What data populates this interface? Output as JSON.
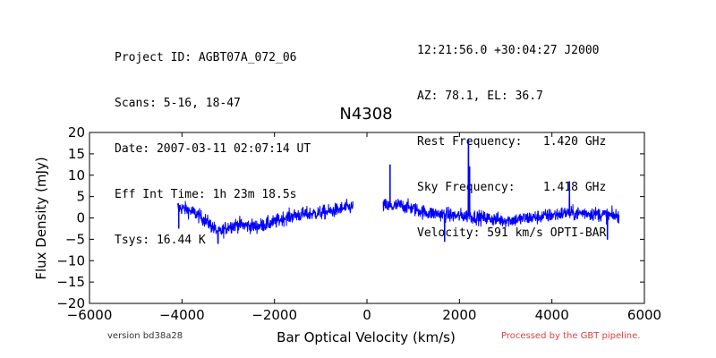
{
  "header_left": [
    "Project ID: AGBT07A_072_06",
    "Scans: 5-16, 18-47",
    "Date: 2007-03-11 02:07:14 UT",
    "Eff Int Time: 1h 23m 18.5s",
    "Tsys: 16.44 K"
  ],
  "header_right": [
    "12:21:56.0 +30:04:27 J2000",
    "AZ: 78.1, EL: 36.7",
    "Rest Frequency:   1.420 GHz",
    "Sky Frequency:    1.418 GHz",
    "Velocity: 591 km/s OPTI-BAR"
  ],
  "footer": {
    "version": "version bd38a28",
    "pipeline": "Processed by the GBT pipeline."
  },
  "colors": {
    "line": "#0000ff",
    "pipeline_text": "#e04040"
  },
  "chart_data": {
    "type": "line",
    "title": "N4308",
    "xlabel": "Bar Optical Velocity (km/s)",
    "ylabel": "Flux Density (mJy)",
    "xlim": [
      -6000,
      6000
    ],
    "ylim": [
      -20,
      20
    ],
    "xticks": [
      -6000,
      -4000,
      -2000,
      0,
      2000,
      4000,
      6000
    ],
    "yticks": [
      -20,
      -15,
      -10,
      -5,
      0,
      5,
      10,
      15,
      20
    ],
    "xtick_labels": [
      "−6000",
      "−4000",
      "−2000",
      "0",
      "2000",
      "4000",
      "6000"
    ],
    "ytick_labels": [
      "−20",
      "−15",
      "−10",
      "−5",
      "0",
      "5",
      "10",
      "15",
      "20"
    ],
    "grid": false,
    "series": [
      {
        "segments": [
          {
            "x": [
              -4100,
              -3900,
              -3700,
              -3500,
              -3300,
              -3200,
              -3000,
              -2800,
              -2600,
              -2400,
              -2200,
              -2000,
              -1800,
              -1600,
              -1400,
              -1200,
              -1000,
              -800,
              -600,
              -400,
              -300
            ],
            "y": [
              2.5,
              2.0,
              1.0,
              -0.5,
              -2.5,
              -3.5,
              -2.0,
              -1.5,
              -1.8,
              -2.0,
              -1.5,
              -1.0,
              0.0,
              0.5,
              0.8,
              1.0,
              1.2,
              1.5,
              2.0,
              2.5,
              2.5
            ]
          },
          {
            "x": [
              350,
              500,
              700,
              900,
              1100,
              1300,
              1500,
              1700,
              1900,
              2100,
              2300,
              2500,
              2700,
              2900,
              3100,
              3300,
              3500,
              3700,
              3900,
              4100,
              4300,
              4500,
              4700,
              4900,
              5100,
              5300,
              5450
            ],
            "y": [
              3.0,
              2.5,
              3.0,
              2.5,
              1.8,
              1.2,
              1.0,
              0.8,
              0.5,
              0.5,
              0.3,
              0.0,
              -0.2,
              -0.5,
              -0.5,
              -0.3,
              0.0,
              0.2,
              0.5,
              0.8,
              1.2,
              1.0,
              1.2,
              1.0,
              0.8,
              0.5,
              0.5
            ]
          }
        ],
        "spikes": [
          {
            "x": 500,
            "y": 12.5
          },
          {
            "x": 1680,
            "y": -5.5
          },
          {
            "x": 2195,
            "y": 18.2
          },
          {
            "x": 2220,
            "y": 12.0
          },
          {
            "x": 4380,
            "y": 8.5
          },
          {
            "x": 5200,
            "y": -5.0
          },
          {
            "x": -4070,
            "y": -2.5
          },
          {
            "x": -3220,
            "y": -6.0
          }
        ],
        "noise_rms": 0.9
      }
    ]
  }
}
